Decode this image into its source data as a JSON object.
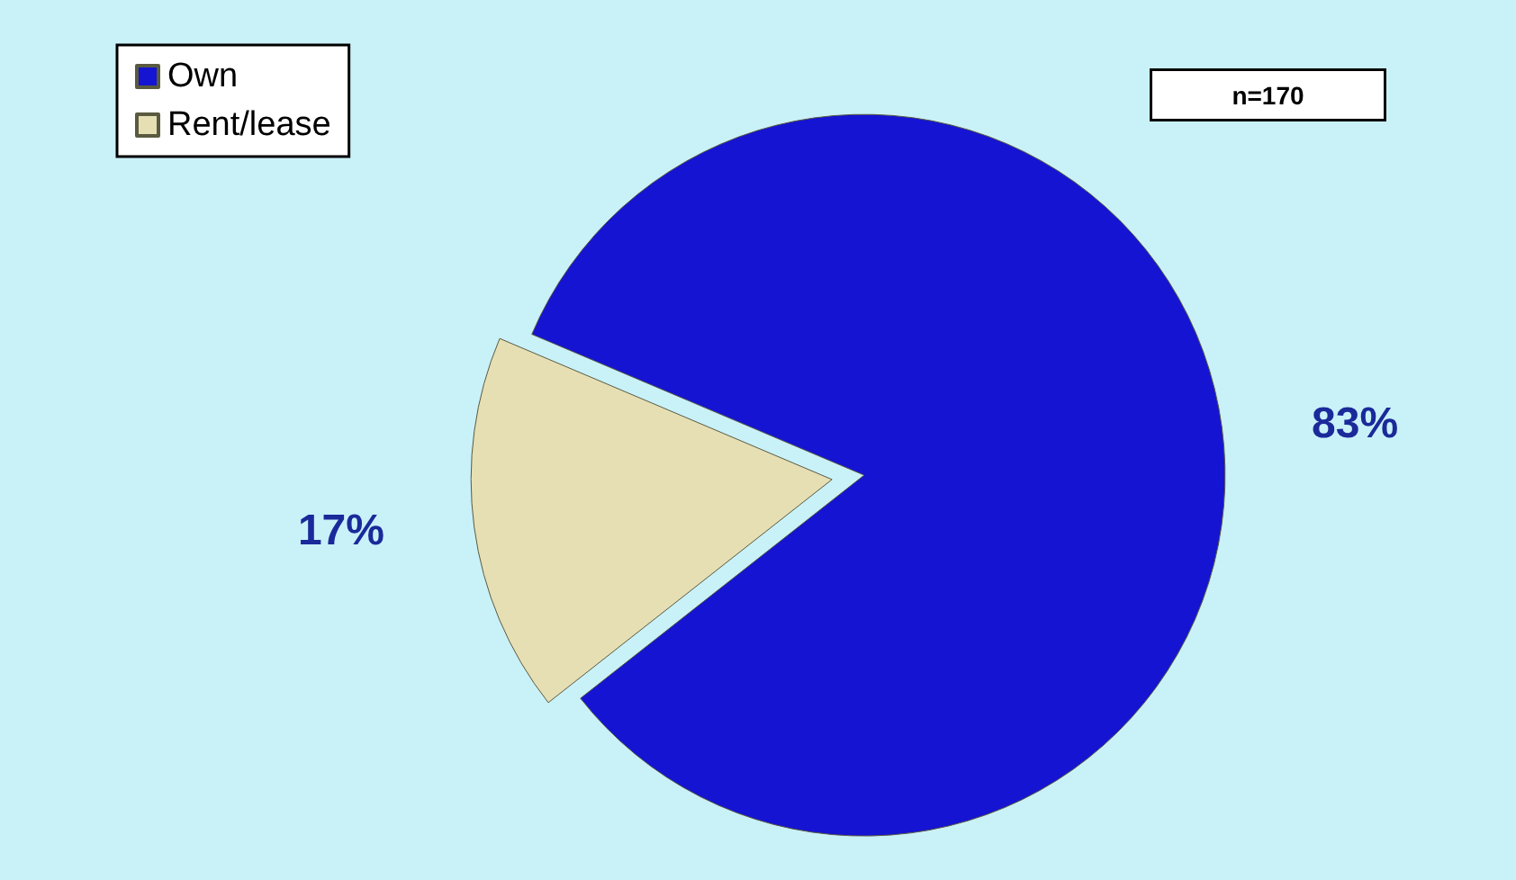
{
  "chart_data": {
    "type": "pie",
    "categories": [
      "Own",
      "Rent/lease"
    ],
    "values": [
      83,
      17
    ],
    "colors": [
      "#1414d2",
      "#e6dfb4"
    ],
    "value_labels": [
      "83%",
      "17%"
    ],
    "legend": "top left",
    "annotations": [
      "n=170"
    ]
  }
}
